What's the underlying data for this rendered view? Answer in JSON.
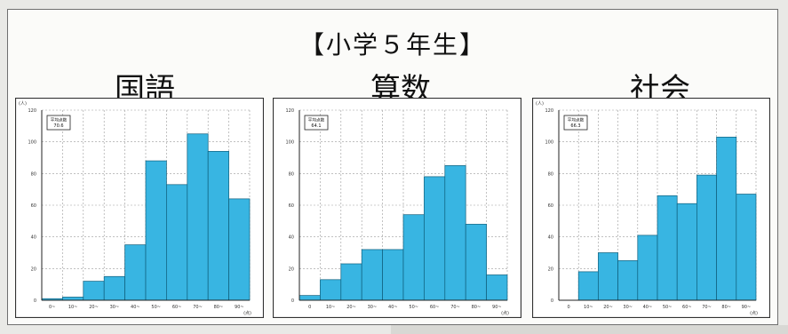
{
  "title": "【小学５年生】",
  "style": {
    "bar_color": "#38b5e2",
    "bar_edge": "#0f5f7d"
  },
  "chart_data": [
    {
      "type": "bar",
      "title": "国語",
      "ylabel": "(人)",
      "xlabel": "(点)",
      "stat_label": "平均点数",
      "stat_value": "70.6",
      "ylim": [
        0,
        120
      ],
      "y_ticks": [
        "0",
        "20",
        "40",
        "60",
        "80",
        "100",
        "120"
      ],
      "categories": [
        "0~",
        "10~",
        "20~",
        "30~",
        "40~",
        "50~",
        "60~",
        "70~",
        "80~",
        "90~"
      ],
      "values": [
        1,
        2,
        12,
        15,
        35,
        88,
        73,
        105,
        94,
        64
      ]
    },
    {
      "type": "bar",
      "title": "算数",
      "ylabel": "",
      "xlabel": "(点)",
      "stat_label": "平均点数",
      "stat_value": "64.1",
      "ylim": [
        0,
        120
      ],
      "y_ticks": [
        "0",
        "20",
        "40",
        "60",
        "80",
        "100",
        "120"
      ],
      "categories": [
        "0",
        "10~",
        "20~",
        "30~",
        "40~",
        "50~",
        "60~",
        "70~",
        "80~",
        "90~"
      ],
      "values": [
        3,
        13,
        23,
        32,
        32,
        54,
        78,
        85,
        48,
        16
      ]
    },
    {
      "type": "bar",
      "title": "社会",
      "ylabel": "(人)",
      "xlabel": "(点)",
      "stat_label": "平均点数",
      "stat_value": "66.3",
      "ylim": [
        0,
        120
      ],
      "y_ticks": [
        "0",
        "20",
        "40",
        "60",
        "80",
        "100",
        "120"
      ],
      "categories": [
        "0",
        "10~",
        "20~",
        "30~",
        "40~",
        "50~",
        "60~",
        "70~",
        "80~",
        "90~"
      ],
      "values": [
        0,
        18,
        30,
        25,
        41,
        66,
        61,
        79,
        103,
        67
      ]
    }
  ]
}
